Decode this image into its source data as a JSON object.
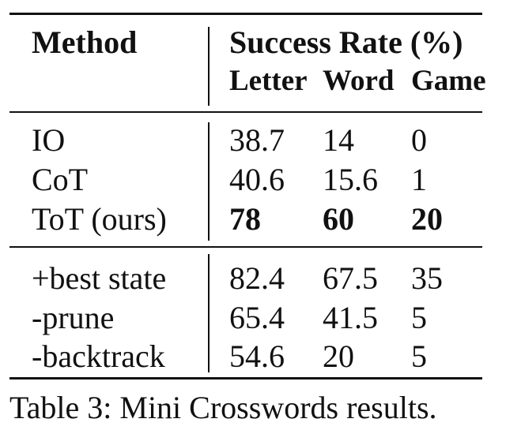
{
  "table": {
    "header": {
      "method": "Method",
      "group": "Success Rate (%)",
      "columns": [
        "Letter",
        "Word",
        "Game"
      ]
    },
    "sections": [
      [
        [
          "IO",
          "38.7",
          "14",
          "0"
        ],
        [
          "CoT",
          "40.6",
          "15.6",
          "1"
        ],
        [
          "ToT (ours)",
          "78",
          "60",
          "20"
        ]
      ],
      [
        [
          "+best state",
          "82.4",
          "67.5",
          "35"
        ],
        [
          "-prune",
          "65.4",
          "41.5",
          "5"
        ],
        [
          "-backtrack",
          "54.6",
          "20",
          "5"
        ]
      ]
    ],
    "bold_row": "ToT (ours)",
    "caption": "Table 3: Mini Crosswords results."
  }
}
